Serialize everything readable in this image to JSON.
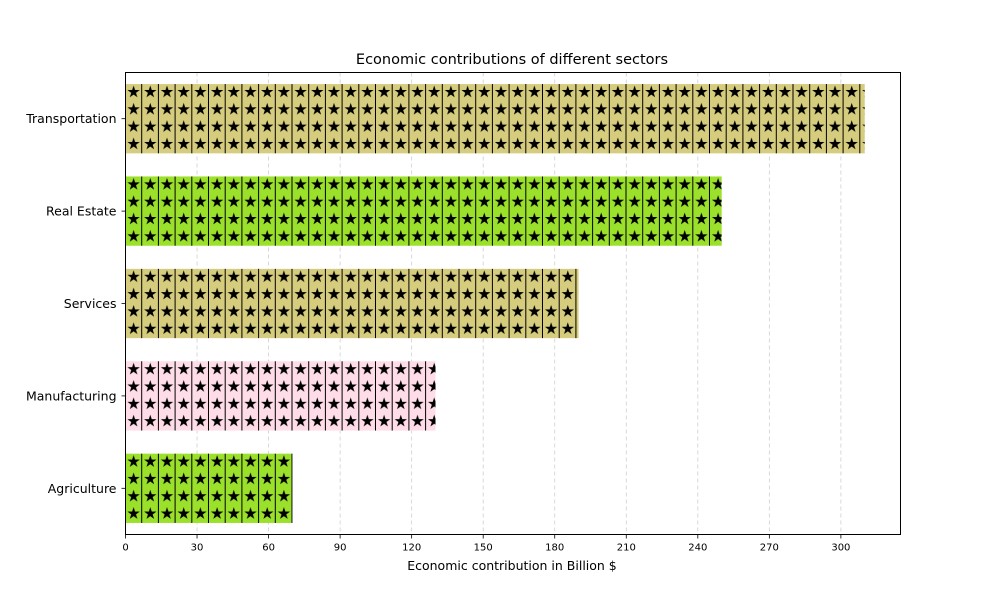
{
  "chart_data": {
    "type": "bar",
    "orientation": "horizontal",
    "title": "Economic contributions of different sectors",
    "xlabel": "Economic contribution in Billion $",
    "ylabel": "",
    "categories": [
      "Agriculture",
      "Manufacturing",
      "Services",
      "Real Estate",
      "Transportation"
    ],
    "values": [
      70,
      130,
      190,
      250,
      310
    ],
    "colors": [
      "#9be02a",
      "#ffdde8",
      "#d6cc7d",
      "#9be02a",
      "#d6cc7d"
    ],
    "hatch": "star",
    "xlim": [
      0,
      325
    ],
    "xticks": [
      0,
      30,
      60,
      90,
      120,
      150,
      180,
      210,
      240,
      270,
      300
    ],
    "grid": "x-dashed"
  }
}
